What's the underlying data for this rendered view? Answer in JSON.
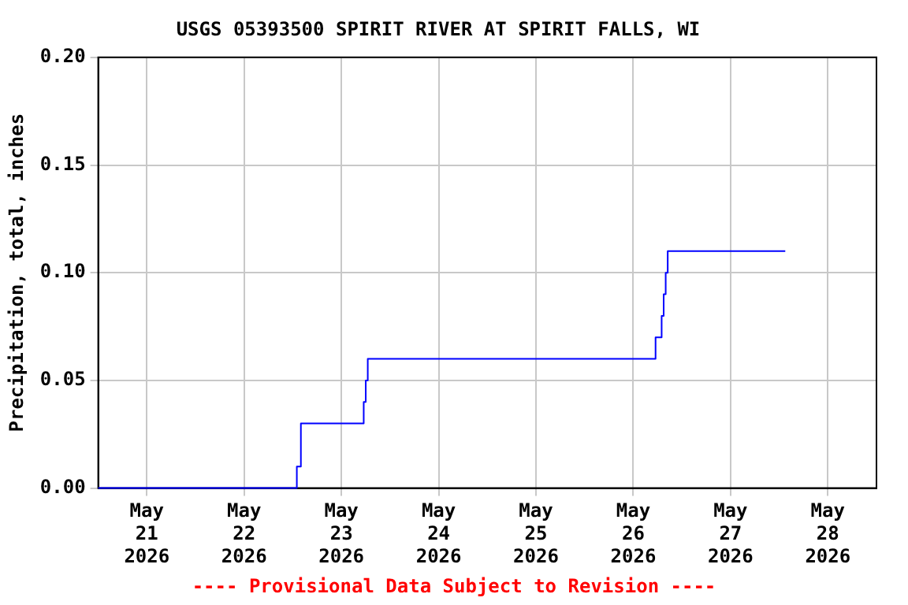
{
  "chart_data": {
    "type": "step",
    "title": "USGS 05393500 SPIRIT RIVER AT SPIRIT FALLS, WI",
    "ylabel": "Precipitation, total, inches",
    "annotations": [
      "---- Provisional Data Subject to Revision ----"
    ],
    "x": [
      "2026-05-20T12:00",
      "2026-05-22T13:00",
      "2026-05-22T14:00",
      "2026-05-23T05:30",
      "2026-05-23T06:00",
      "2026-05-23T06:30",
      "2026-05-26T05:30",
      "2026-05-26T07:00",
      "2026-05-26T07:30",
      "2026-05-26T08:00",
      "2026-05-26T08:30",
      "2026-05-27T13:30"
    ],
    "series": [
      {
        "color": "#0000ff",
        "values": [
          0,
          0.01,
          0.03,
          0.04,
          0.05,
          0.06,
          0.07,
          0.08,
          0.09,
          0.1,
          0.11,
          0.11
        ]
      }
    ],
    "xlim": [
      "2026-05-20T12:00",
      "2026-05-28T12:00"
    ],
    "xticks": [
      {
        "value": "2026-05-21",
        "label": "May\n21\n2026"
      },
      {
        "value": "2026-05-22",
        "label": "May\n22\n2026"
      },
      {
        "value": "2026-05-23",
        "label": "May\n23\n2026"
      },
      {
        "value": "2026-05-24",
        "label": "May\n24\n2026"
      },
      {
        "value": "2026-05-25",
        "label": "May\n25\n2026"
      },
      {
        "value": "2026-05-26",
        "label": "May\n26\n2026"
      },
      {
        "value": "2026-05-27",
        "label": "May\n27\n2026"
      },
      {
        "value": "2026-05-28",
        "label": "May\n28\n2026"
      }
    ],
    "ylim": [
      0,
      0.2
    ],
    "yticks": [
      {
        "value": 0,
        "label": "0.00"
      },
      {
        "value": 0.05,
        "label": "0.05"
      },
      {
        "value": 0.1,
        "label": "0.10"
      },
      {
        "value": 0.15,
        "label": "0.15"
      },
      {
        "value": 0.2,
        "label": "0.20"
      }
    ],
    "grid": true,
    "legend": false,
    "marker": "none",
    "line_style": "solid"
  }
}
